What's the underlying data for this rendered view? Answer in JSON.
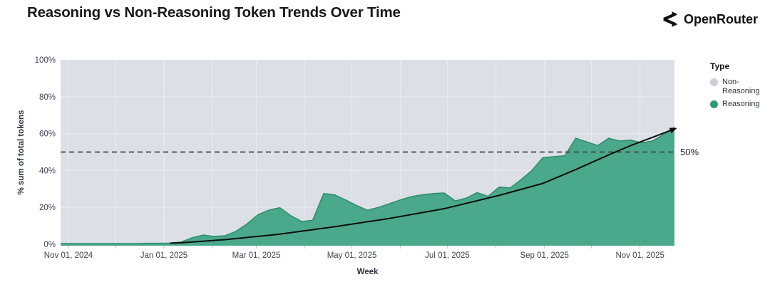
{
  "header": {
    "title": "Reasoning vs Non-Reasoning Token Trends Over Time",
    "brand": "OpenRouter"
  },
  "legend": {
    "title": "Type",
    "items": [
      {
        "label": "Non-Reasoning",
        "color": "#cdd0d8"
      },
      {
        "label": "Reasoning",
        "color": "#2b9e6e"
      }
    ]
  },
  "chart_data": {
    "type": "area",
    "title": "Reasoning vs Non-Reasoning Token Trends Over Time",
    "xlabel": "Week",
    "ylabel": "% sum of total tokens",
    "ylim": [
      0,
      100
    ],
    "y_ticks": [
      0,
      20,
      40,
      60,
      80,
      100
    ],
    "y_tick_suffix": "%",
    "grid": true,
    "legend_position": "right",
    "x_domain": [
      "2024-10-27",
      "2025-11-23"
    ],
    "month_gridlines": [
      "2024-11-01",
      "2024-12-01",
      "2025-01-01",
      "2025-02-01",
      "2025-03-01",
      "2025-04-01",
      "2025-05-01",
      "2025-06-01",
      "2025-07-01",
      "2025-08-01",
      "2025-09-01",
      "2025-10-01",
      "2025-11-01"
    ],
    "x_tick_labels": [
      {
        "date": "2024-11-01",
        "label": "Nov 01, 2024"
      },
      {
        "date": "2025-01-01",
        "label": "Jan 01, 2025"
      },
      {
        "date": "2025-03-01",
        "label": "Mar 01, 2025"
      },
      {
        "date": "2025-05-01",
        "label": "May 01, 2025"
      },
      {
        "date": "2025-07-01",
        "label": "Jul 01, 2025"
      },
      {
        "date": "2025-09-01",
        "label": "Sep 01, 2025"
      },
      {
        "date": "2025-11-01",
        "label": "Nov 01, 2025"
      }
    ],
    "reference_line": {
      "value": 50,
      "label": "50%"
    },
    "series": [
      {
        "name": "Reasoning",
        "color": "#4aa98b",
        "x": [
          "2024-10-27",
          "2024-11-03",
          "2024-11-10",
          "2024-11-17",
          "2024-11-24",
          "2024-12-01",
          "2024-12-08",
          "2024-12-15",
          "2024-12-22",
          "2024-12-29",
          "2025-01-05",
          "2025-01-12",
          "2025-01-19",
          "2025-01-26",
          "2025-02-02",
          "2025-02-09",
          "2025-02-16",
          "2025-02-23",
          "2025-03-02",
          "2025-03-09",
          "2025-03-16",
          "2025-03-23",
          "2025-03-30",
          "2025-04-06",
          "2025-04-13",
          "2025-04-20",
          "2025-04-27",
          "2025-05-04",
          "2025-05-11",
          "2025-05-18",
          "2025-05-25",
          "2025-06-01",
          "2025-06-08",
          "2025-06-15",
          "2025-06-22",
          "2025-06-29",
          "2025-07-06",
          "2025-07-13",
          "2025-07-20",
          "2025-07-27",
          "2025-08-03",
          "2025-08-10",
          "2025-08-17",
          "2025-08-24",
          "2025-08-31",
          "2025-09-07",
          "2025-09-14",
          "2025-09-21",
          "2025-09-28",
          "2025-10-05",
          "2025-10-12",
          "2025-10-19",
          "2025-10-26",
          "2025-11-02",
          "2025-11-09",
          "2025-11-16",
          "2025-11-23"
        ],
        "values": [
          0.4,
          0.4,
          0.4,
          0.4,
          0.4,
          0.4,
          0.4,
          0.4,
          0.5,
          0.5,
          0.6,
          1.2,
          3.5,
          5,
          4.2,
          4.6,
          7,
          11,
          16,
          18.5,
          19.8,
          15.5,
          12.3,
          13,
          27.5,
          26.8,
          24,
          21,
          18.4,
          20,
          22,
          24,
          25.8,
          26.8,
          27.5,
          27.8,
          23.5,
          25,
          28,
          26,
          31,
          30.5,
          35,
          40,
          47,
          47.5,
          48,
          57.5,
          55.5,
          53.5,
          57.5,
          56,
          56.5,
          55,
          56,
          59.5,
          63.5
        ]
      },
      {
        "name": "Non-Reasoning",
        "color": "#dcdfe6",
        "note": "complement of Reasoning, fills remainder to 100%"
      }
    ],
    "trend_line": {
      "name": "trend",
      "points": [
        [
          "2025-01-05",
          0.6
        ],
        [
          "2025-01-12",
          0.8
        ],
        [
          "2025-02-09",
          2.5
        ],
        [
          "2025-03-16",
          5.5
        ],
        [
          "2025-04-20",
          9.5
        ],
        [
          "2025-05-25",
          14
        ],
        [
          "2025-06-29",
          19.3
        ],
        [
          "2025-08-03",
          26.5
        ],
        [
          "2025-08-31",
          33
        ],
        [
          "2025-09-21",
          40.5
        ],
        [
          "2025-10-12",
          48.5
        ],
        [
          "2025-10-26",
          53.5
        ],
        [
          "2025-11-09",
          58
        ],
        [
          "2025-11-23",
          62.5
        ]
      ]
    },
    "colors": {
      "plot_bg": "#dcdfe6",
      "grid": "#e9ebf0",
      "dashed": "#3f454f",
      "trend": "#0c0d0f",
      "area_fill": "#4aa98b",
      "area_stroke": "#2f8f6a",
      "tick_text": "#3d4452",
      "ref_text": "#1c1f26"
    }
  }
}
